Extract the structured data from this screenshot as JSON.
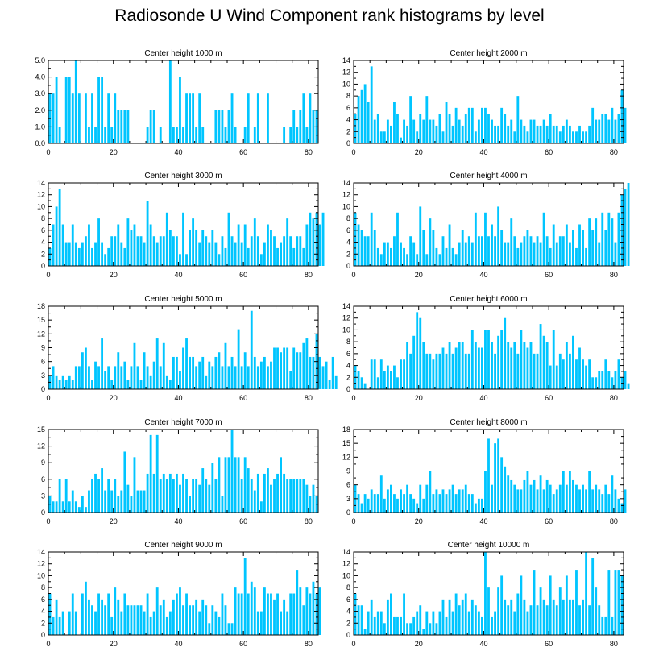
{
  "title": "Radiosonde U Wind Component rank histograms by level",
  "colors": {
    "bar": "#00C5FF",
    "axis": "#000000"
  },
  "chart_data": [
    {
      "type": "bar",
      "title": "Center height 1000 m",
      "xlabel": "",
      "ylabel": "",
      "xlim": [
        0,
        83
      ],
      "ylim": [
        0,
        5
      ],
      "xticks": [
        0,
        20,
        40,
        60,
        80
      ],
      "yticks": [
        0,
        1,
        2,
        3,
        4,
        5
      ],
      "ytick_labels": [
        "0.0",
        "1.0",
        "2.0",
        "3.0",
        "4.0",
        "5.0"
      ],
      "values": [
        3,
        3,
        4,
        1,
        0,
        4,
        4,
        3,
        5,
        3,
        0,
        3,
        1,
        3,
        1,
        4,
        4,
        1,
        3,
        1,
        3,
        2,
        2,
        2,
        2,
        0,
        0,
        0,
        0,
        0,
        1,
        2,
        2,
        0,
        1,
        0,
        0,
        5,
        1,
        1,
        4,
        1,
        3,
        3,
        3,
        1,
        3,
        1,
        0,
        0,
        0,
        2,
        2,
        2,
        1,
        2,
        3,
        1,
        0,
        0,
        1,
        3,
        0,
        1,
        3,
        0,
        0,
        3,
        0,
        0,
        0,
        0,
        1,
        0,
        1,
        2,
        1,
        2,
        3,
        1,
        3,
        2,
        2
      ]
    },
    {
      "type": "bar",
      "title": "Center height 2000 m",
      "xlabel": "",
      "ylabel": "",
      "xlim": [
        0,
        83
      ],
      "ylim": [
        0,
        14
      ],
      "xticks": [
        0,
        20,
        40,
        60,
        80
      ],
      "yticks": [
        0,
        2,
        4,
        6,
        8,
        10,
        12,
        14
      ],
      "ytick_labels": [
        "0",
        "2",
        "4",
        "6",
        "8",
        "10",
        "12",
        "14"
      ],
      "values": [
        5,
        8,
        9,
        10,
        7,
        13,
        4,
        5,
        2,
        2,
        4,
        3,
        7,
        5,
        1,
        4,
        3,
        8,
        4,
        2,
        5,
        4,
        8,
        4,
        4,
        3,
        5,
        2,
        7,
        5,
        3,
        6,
        4,
        3,
        5,
        6,
        6,
        2,
        4,
        6,
        6,
        5,
        4,
        3,
        3,
        6,
        5,
        3,
        4,
        2,
        8,
        4,
        3,
        2,
        4,
        4,
        3,
        3,
        4,
        3,
        5,
        3,
        3,
        2,
        3,
        4,
        3,
        2,
        2,
        3,
        2,
        2,
        3,
        6,
        4,
        4,
        5,
        5,
        4,
        6,
        4,
        5,
        9,
        6
      ]
    },
    {
      "type": "bar",
      "title": "Center height 3000 m",
      "xlabel": "",
      "ylabel": "",
      "xlim": [
        0,
        83
      ],
      "ylim": [
        0,
        14
      ],
      "xticks": [
        0,
        20,
        40,
        60,
        80
      ],
      "yticks": [
        0,
        2,
        4,
        6,
        8,
        10,
        12,
        14
      ],
      "ytick_labels": [
        "0",
        "2",
        "4",
        "6",
        "8",
        "10",
        "12",
        "14"
      ],
      "values": [
        3,
        7,
        10,
        13,
        7,
        4,
        4,
        7,
        4,
        3,
        4,
        5,
        7,
        3,
        4,
        8,
        4,
        2,
        3,
        5,
        5,
        7,
        4,
        3,
        8,
        6,
        7,
        5,
        5,
        4,
        11,
        7,
        5,
        4,
        5,
        5,
        9,
        6,
        5,
        5,
        2,
        9,
        2,
        6,
        8,
        6,
        4,
        6,
        5,
        4,
        6,
        4,
        2,
        5,
        3,
        9,
        5,
        4,
        7,
        4,
        7,
        3,
        5,
        8,
        5,
        2,
        4,
        7,
        6,
        5,
        3,
        4,
        5,
        8,
        5,
        3,
        5,
        5,
        3,
        7,
        9,
        8,
        9,
        7,
        9
      ]
    },
    {
      "type": "bar",
      "title": "Center height 4000 m",
      "xlabel": "",
      "ylabel": "",
      "xlim": [
        0,
        83
      ],
      "ylim": [
        0,
        14
      ],
      "xticks": [
        0,
        20,
        40,
        60,
        80
      ],
      "yticks": [
        0,
        2,
        4,
        6,
        8,
        10,
        12,
        14
      ],
      "ytick_labels": [
        "0",
        "2",
        "4",
        "6",
        "8",
        "10",
        "12",
        "14"
      ],
      "values": [
        9,
        7,
        6,
        5,
        5,
        9,
        6,
        3,
        2,
        4,
        4,
        3,
        5,
        9,
        4,
        3,
        2,
        5,
        4,
        2,
        10,
        6,
        2,
        8,
        6,
        3,
        2,
        5,
        3,
        7,
        3,
        2,
        4,
        6,
        4,
        5,
        4,
        9,
        5,
        5,
        9,
        5,
        7,
        5,
        10,
        6,
        4,
        4,
        8,
        5,
        3,
        4,
        5,
        6,
        5,
        4,
        5,
        4,
        9,
        5,
        3,
        7,
        4,
        5,
        5,
        7,
        4,
        6,
        3,
        7,
        6,
        3,
        8,
        6,
        8,
        4,
        9,
        6,
        9,
        8,
        4,
        9,
        12,
        13,
        14
      ]
    },
    {
      "type": "bar",
      "title": "Center height 5000 m",
      "xlabel": "",
      "ylabel": "",
      "xlim": [
        0,
        83
      ],
      "ylim": [
        0,
        18
      ],
      "xticks": [
        0,
        20,
        40,
        60,
        80
      ],
      "yticks": [
        0,
        3,
        6,
        9,
        12,
        15,
        18
      ],
      "ytick_labels": [
        "0",
        "3",
        "6",
        "9",
        "12",
        "15",
        "18"
      ],
      "values": [
        3,
        5,
        3,
        2,
        3,
        2,
        3,
        2,
        5,
        5,
        8,
        9,
        5,
        2,
        6,
        5,
        11,
        4,
        5,
        2,
        5,
        8,
        5,
        6,
        2,
        5,
        10,
        5,
        2,
        8,
        5,
        3,
        6,
        11,
        5,
        10,
        3,
        2,
        7,
        7,
        4,
        9,
        11,
        7,
        7,
        5,
        6,
        7,
        3,
        6,
        5,
        7,
        8,
        5,
        10,
        5,
        7,
        5,
        13,
        5,
        8,
        5,
        17,
        7,
        5,
        6,
        7,
        5,
        6,
        9,
        9,
        8,
        9,
        9,
        4,
        9,
        8,
        8,
        10,
        11,
        7,
        7,
        12,
        7,
        5,
        6,
        2,
        7,
        3
      ]
    },
    {
      "type": "bar",
      "title": "Center height 6000 m",
      "xlabel": "",
      "ylabel": "",
      "xlim": [
        0,
        83
      ],
      "ylim": [
        0,
        14
      ],
      "xticks": [
        0,
        20,
        40,
        60,
        80
      ],
      "yticks": [
        0,
        2,
        4,
        6,
        8,
        10,
        12,
        14
      ],
      "ytick_labels": [
        "0",
        "2",
        "4",
        "6",
        "8",
        "10",
        "12",
        "14"
      ],
      "values": [
        4,
        3,
        2,
        1,
        0,
        5,
        5,
        2,
        5,
        3,
        4,
        3,
        4,
        2,
        5,
        5,
        8,
        6,
        9,
        13,
        12,
        8,
        6,
        6,
        5,
        6,
        6,
        7,
        6,
        8,
        6,
        7,
        8,
        8,
        6,
        6,
        10,
        8,
        7,
        7,
        10,
        10,
        8,
        6,
        9,
        10,
        12,
        8,
        7,
        8,
        6,
        10,
        8,
        7,
        8,
        6,
        6,
        11,
        9,
        8,
        4,
        10,
        4,
        6,
        5,
        8,
        6,
        9,
        5,
        7,
        5,
        4,
        5,
        2,
        2,
        3,
        3,
        5,
        3,
        2,
        3,
        5,
        2,
        3,
        1
      ]
    },
    {
      "type": "bar",
      "title": "Center height 7000 m",
      "xlabel": "",
      "ylabel": "",
      "xlim": [
        0,
        83
      ],
      "ylim": [
        0,
        15
      ],
      "xticks": [
        0,
        20,
        40,
        60,
        80
      ],
      "yticks": [
        0,
        3,
        6,
        9,
        12,
        15
      ],
      "ytick_labels": [
        "0",
        "3",
        "6",
        "9",
        "12",
        "15"
      ],
      "values": [
        3,
        2,
        2,
        6,
        2,
        6,
        2,
        4,
        2,
        1,
        3,
        1,
        4,
        6,
        7,
        6,
        8,
        4,
        6,
        4,
        6,
        3,
        4,
        11,
        5,
        3,
        10,
        4,
        4,
        4,
        7,
        14,
        7,
        14,
        6,
        7,
        6,
        7,
        6,
        7,
        5,
        7,
        6,
        3,
        6,
        6,
        5,
        8,
        6,
        5,
        9,
        6,
        10,
        3,
        10,
        10,
        15,
        10,
        10,
        6,
        10,
        8,
        6,
        4,
        7,
        2,
        7,
        8,
        5,
        6,
        7,
        10,
        7,
        6,
        6,
        6,
        6,
        6,
        6,
        5,
        3,
        5,
        3
      ]
    },
    {
      "type": "bar",
      "title": "Center height 8000 m",
      "xlabel": "",
      "ylabel": "",
      "xlim": [
        0,
        83
      ],
      "ylim": [
        0,
        18
      ],
      "xticks": [
        0,
        20,
        40,
        60,
        80
      ],
      "yticks": [
        0,
        3,
        6,
        9,
        12,
        15,
        18
      ],
      "ytick_labels": [
        "0",
        "3",
        "6",
        "9",
        "12",
        "15",
        "18"
      ],
      "values": [
        6,
        4,
        2,
        4,
        3,
        5,
        4,
        4,
        8,
        3,
        5,
        6,
        4,
        3,
        5,
        4,
        6,
        4,
        3,
        2,
        6,
        3,
        6,
        9,
        4,
        5,
        4,
        5,
        4,
        5,
        6,
        4,
        5,
        5,
        6,
        4,
        4,
        2,
        3,
        3,
        9,
        16,
        6,
        15,
        16,
        12,
        10,
        8,
        7,
        6,
        5,
        5,
        7,
        9,
        6,
        7,
        5,
        8,
        5,
        7,
        6,
        4,
        5,
        6,
        9,
        6,
        9,
        7,
        6,
        5,
        6,
        5,
        9,
        5,
        6,
        5,
        4,
        6,
        4,
        8,
        5,
        3,
        2,
        5
      ]
    },
    {
      "type": "bar",
      "title": "Center height 9000 m",
      "xlabel": "",
      "ylabel": "",
      "xlim": [
        0,
        83
      ],
      "ylim": [
        0,
        14
      ],
      "xticks": [
        0,
        20,
        40,
        60,
        80
      ],
      "yticks": [
        0,
        2,
        4,
        6,
        8,
        10,
        12,
        14
      ],
      "ytick_labels": [
        "0",
        "2",
        "4",
        "6",
        "8",
        "10",
        "12",
        "14"
      ],
      "values": [
        7,
        3,
        6,
        3,
        4,
        0,
        4,
        7,
        4,
        0,
        7,
        9,
        6,
        5,
        4,
        7,
        6,
        5,
        7,
        3,
        8,
        6,
        4,
        7,
        5,
        5,
        5,
        5,
        5,
        4,
        7,
        3,
        4,
        8,
        5,
        6,
        3,
        4,
        6,
        7,
        8,
        5,
        7,
        5,
        5,
        6,
        4,
        6,
        5,
        2,
        5,
        4,
        3,
        7,
        5,
        2,
        2,
        8,
        7,
        7,
        13,
        7,
        9,
        8,
        4,
        4,
        8,
        7,
        7,
        6,
        7,
        4,
        6,
        4,
        7,
        7,
        11,
        8,
        5,
        8,
        7,
        9,
        7,
        8
      ]
    },
    {
      "type": "bar",
      "title": "Center height 10000 m",
      "xlabel": "",
      "ylabel": "",
      "xlim": [
        0,
        83
      ],
      "ylim": [
        0,
        14
      ],
      "xticks": [
        0,
        20,
        40,
        60,
        80
      ],
      "yticks": [
        0,
        2,
        4,
        6,
        8,
        10,
        12,
        14
      ],
      "ytick_labels": [
        "0",
        "2",
        "4",
        "6",
        "8",
        "10",
        "12",
        "14"
      ],
      "values": [
        7,
        5,
        5,
        1,
        4,
        6,
        3,
        4,
        4,
        2,
        6,
        7,
        3,
        3,
        3,
        7,
        2,
        2,
        3,
        4,
        5,
        1,
        4,
        2,
        4,
        2,
        4,
        6,
        3,
        6,
        4,
        7,
        5,
        6,
        7,
        4,
        6,
        5,
        4,
        3,
        14,
        8,
        3,
        4,
        8,
        10,
        6,
        5,
        6,
        4,
        7,
        10,
        6,
        4,
        5,
        11,
        5,
        8,
        6,
        5,
        10,
        6,
        5,
        8,
        6,
        10,
        6,
        6,
        11,
        5,
        6,
        14,
        5,
        13,
        8,
        5,
        3,
        3,
        11,
        3,
        11,
        11,
        10
      ]
    }
  ]
}
